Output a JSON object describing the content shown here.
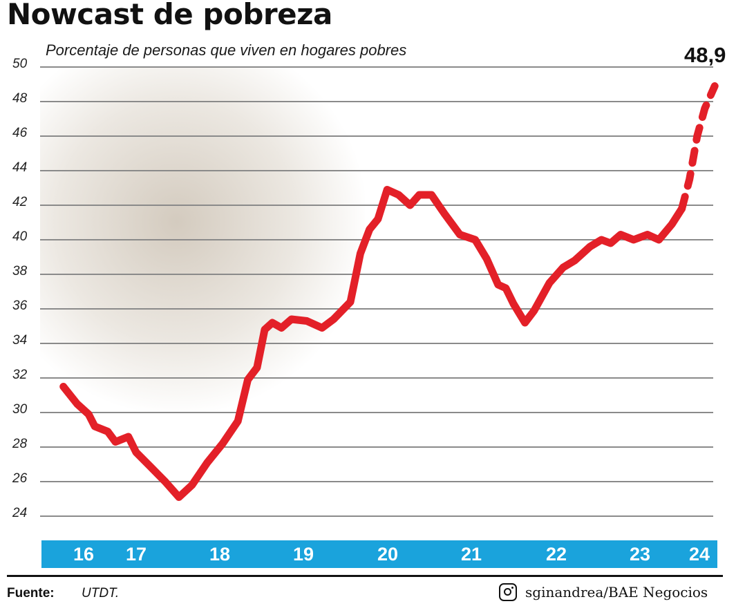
{
  "title": "Nowcast de pobreza",
  "subtitle": "Porcentaje de personas que viven en hogares pobres",
  "source_label": "Fuente:",
  "source_value": "UTDT.",
  "credit": "sginandrea/BAE Negocios",
  "credit_icon": "instagram-icon",
  "chart_data": {
    "type": "line",
    "title": "Nowcast de pobreza",
    "subtitle": "Porcentaje de personas que viven en hogares pobres",
    "ylim": [
      24,
      50
    ],
    "yticks": [
      "50",
      "48",
      "46",
      "44",
      "42",
      "40",
      "38",
      "36",
      "34",
      "32",
      "30",
      "28",
      "26",
      "24"
    ],
    "xticks": [
      "16",
      "17",
      "18",
      "19",
      "20",
      "21",
      "22",
      "23",
      "24"
    ],
    "xlim": [
      2016.0,
      2024.55
    ],
    "grid": true,
    "colors": {
      "line": "#e32028",
      "axis_band": "#1aa3dc"
    },
    "last_value_label": "48,9",
    "series": [
      {
        "values_observed": [
          [
            2015.97,
            31.5
          ],
          [
            2016.15,
            30.5
          ],
          [
            2016.3,
            29.9
          ],
          [
            2016.38,
            29.2
          ],
          [
            2016.55,
            28.9
          ],
          [
            2016.65,
            28.3
          ],
          [
            2016.82,
            28.6
          ],
          [
            2016.92,
            27.7
          ],
          [
            2017.1,
            26.9
          ],
          [
            2017.3,
            26.0
          ],
          [
            2017.48,
            25.1
          ],
          [
            2017.65,
            25.8
          ],
          [
            2017.85,
            27.1
          ],
          [
            2018.05,
            28.2
          ],
          [
            2018.25,
            29.5
          ],
          [
            2018.38,
            31.9
          ],
          [
            2018.5,
            32.6
          ],
          [
            2018.6,
            34.8
          ],
          [
            2018.7,
            35.2
          ],
          [
            2018.82,
            34.9
          ],
          [
            2018.95,
            35.4
          ],
          [
            2019.15,
            35.3
          ],
          [
            2019.35,
            34.9
          ],
          [
            2019.5,
            35.4
          ],
          [
            2019.72,
            36.4
          ],
          [
            2019.85,
            39.2
          ],
          [
            2019.97,
            40.6
          ],
          [
            2020.08,
            41.2
          ],
          [
            2020.2,
            42.9
          ],
          [
            2020.35,
            42.6
          ],
          [
            2020.5,
            42.0
          ],
          [
            2020.62,
            42.6
          ],
          [
            2020.78,
            42.6
          ],
          [
            2020.95,
            41.5
          ],
          [
            2021.15,
            40.3
          ],
          [
            2021.35,
            40.0
          ],
          [
            2021.5,
            38.9
          ],
          [
            2021.65,
            37.4
          ],
          [
            2021.75,
            37.2
          ],
          [
            2021.85,
            36.3
          ],
          [
            2022.0,
            35.2
          ],
          [
            2022.12,
            35.9
          ],
          [
            2022.32,
            37.5
          ],
          [
            2022.5,
            38.4
          ],
          [
            2022.65,
            38.8
          ],
          [
            2022.85,
            39.6
          ],
          [
            2023.0,
            40.0
          ],
          [
            2023.12,
            39.8
          ],
          [
            2023.25,
            40.3
          ],
          [
            2023.42,
            40.0
          ],
          [
            2023.6,
            40.3
          ],
          [
            2023.75,
            40.0
          ],
          [
            2023.92,
            40.9
          ],
          [
            2024.05,
            41.8
          ]
        ],
        "values_projected": [
          [
            2024.05,
            41.8
          ],
          [
            2024.15,
            43.5
          ],
          [
            2024.25,
            46.0
          ],
          [
            2024.35,
            47.6
          ],
          [
            2024.48,
            48.9
          ]
        ]
      }
    ]
  }
}
